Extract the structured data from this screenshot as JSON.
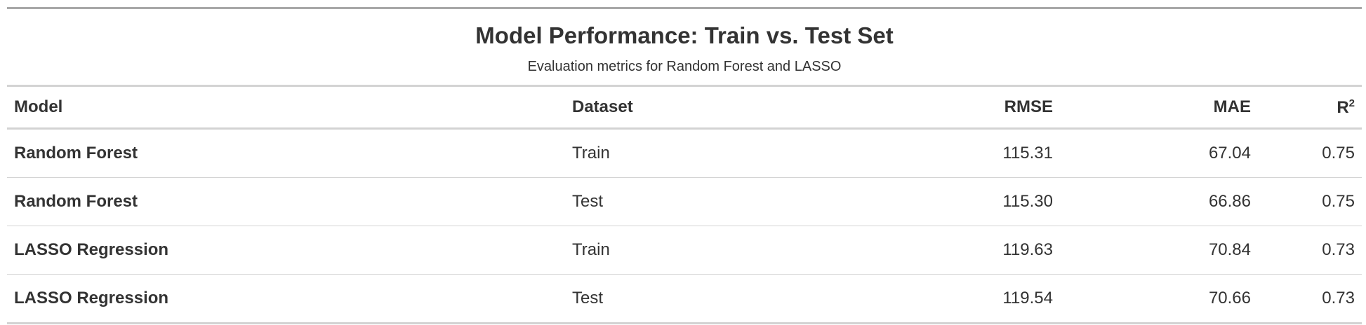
{
  "table": {
    "title": "Model Performance: Train vs. Test Set",
    "subtitle": "Evaluation metrics for Random Forest and LASSO",
    "columns": {
      "model": "Model",
      "dataset": "Dataset",
      "rmse": "RMSE",
      "mae": "MAE",
      "r2_base": "R",
      "r2_sup": "2"
    },
    "rows": [
      {
        "model": "Random Forest",
        "dataset": "Train",
        "rmse": "115.31",
        "mae": "67.04",
        "r2": "0.75"
      },
      {
        "model": "Random Forest",
        "dataset": "Test",
        "rmse": "115.30",
        "mae": "66.86",
        "r2": "0.75"
      },
      {
        "model": "LASSO Regression",
        "dataset": "Train",
        "rmse": "119.63",
        "mae": "70.84",
        "r2": "0.73"
      },
      {
        "model": "LASSO Regression",
        "dataset": "Test",
        "rmse": "119.54",
        "mae": "70.66",
        "r2": "0.73"
      }
    ]
  }
}
